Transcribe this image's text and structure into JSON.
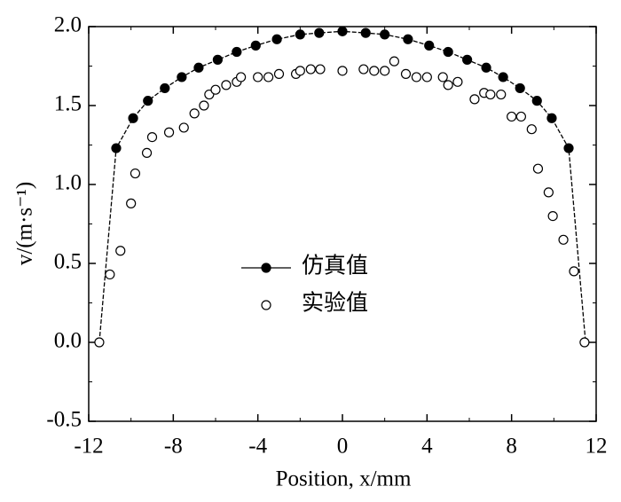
{
  "chart_data": {
    "type": "scatter",
    "x_label": "Position, x/mm",
    "y_label": "v/(m·s⁻¹)",
    "xlim": [
      -12,
      12
    ],
    "xticks": [
      -12,
      -8,
      -4,
      0,
      4,
      8,
      12
    ],
    "ylim": [
      -0.5,
      2.0
    ],
    "yticks": [
      {
        "value": -0.5,
        "label": "-0.5"
      },
      {
        "value": 0,
        "label": "0.0"
      },
      {
        "value": 0.5,
        "label": "0.5"
      },
      {
        "value": 1.0,
        "label": "1.0"
      },
      {
        "value": 1.5,
        "label": "1.5"
      },
      {
        "value": 2.0,
        "label": "2.0"
      }
    ],
    "legend": "center-left",
    "series": [
      {
        "name": "仿真值",
        "color": "#000000",
        "marker": "filled",
        "line": true,
        "x": [
          -11.5,
          -10.7,
          -9.9,
          -9.2,
          -8.4,
          -7.6,
          -6.8,
          -5.9,
          -5.0,
          -4.1,
          -3.1,
          -2.0,
          -1.1,
          0,
          1.1,
          2.0,
          3.1,
          4.1,
          5.0,
          5.9,
          6.8,
          7.6,
          8.4,
          9.2,
          9.9,
          10.7,
          11.5
        ],
        "values": [
          0,
          1.23,
          1.42,
          1.53,
          1.61,
          1.68,
          1.74,
          1.79,
          1.84,
          1.88,
          1.92,
          1.95,
          1.96,
          1.97,
          1.96,
          1.95,
          1.92,
          1.88,
          1.84,
          1.79,
          1.74,
          1.68,
          1.61,
          1.53,
          1.42,
          1.23,
          0
        ]
      },
      {
        "name": "实验值",
        "color": "#000000",
        "marker": "open",
        "line": false,
        "x": [
          -11.5,
          -11.0,
          -10.5,
          -10.0,
          -9.8,
          -9.25,
          -9.0,
          -8.2,
          -7.5,
          -7.0,
          -6.55,
          -6.3,
          -6.0,
          -5.5,
          -5.0,
          -4.8,
          -4.0,
          -3.5,
          -3.0,
          -2.2,
          -2.0,
          -1.5,
          -1.05,
          0,
          1.0,
          1.5,
          2.0,
          2.45,
          3.0,
          3.5,
          4.0,
          4.75,
          5.0,
          5.45,
          6.25,
          6.7,
          7.0,
          7.5,
          8.0,
          8.45,
          8.95,
          9.25,
          9.75,
          9.95,
          10.45,
          10.95,
          11.45
        ],
        "values": [
          0,
          0.43,
          0.58,
          0.88,
          1.07,
          1.2,
          1.3,
          1.33,
          1.36,
          1.45,
          1.5,
          1.57,
          1.6,
          1.63,
          1.65,
          1.68,
          1.68,
          1.68,
          1.7,
          1.7,
          1.72,
          1.73,
          1.73,
          1.72,
          1.73,
          1.72,
          1.72,
          1.78,
          1.7,
          1.68,
          1.68,
          1.68,
          1.63,
          1.65,
          1.54,
          1.58,
          1.57,
          1.57,
          1.43,
          1.43,
          1.35,
          1.1,
          0.95,
          0.8,
          0.65,
          0.45,
          0
        ]
      }
    ]
  }
}
